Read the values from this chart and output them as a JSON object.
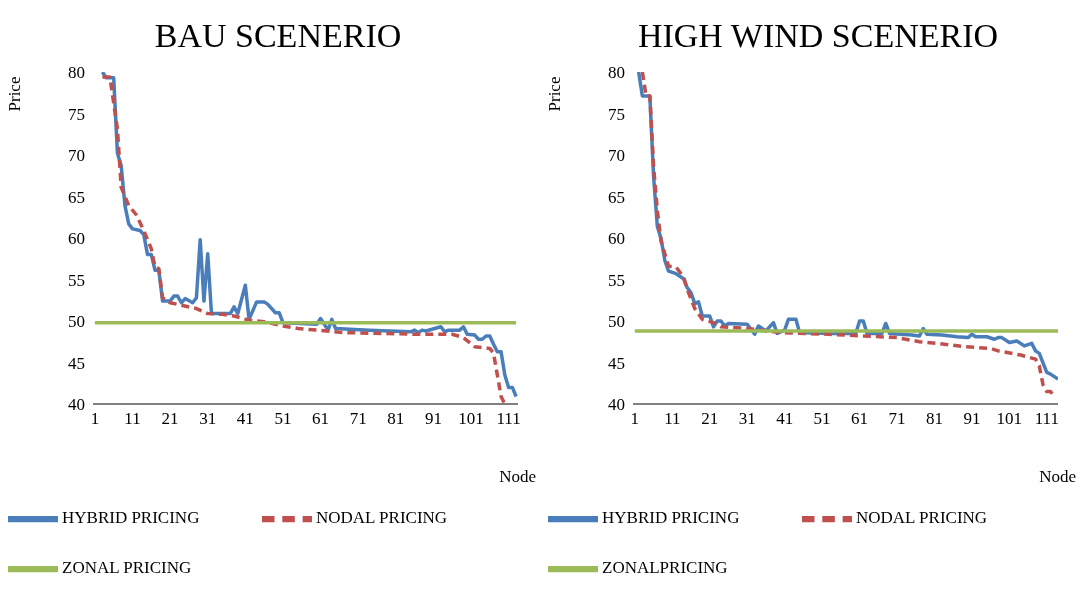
{
  "chart_data": [
    {
      "type": "line",
      "title": "BAU SCENERIO",
      "xlabel": "Node",
      "ylabel": "Price",
      "xlim": [
        0.5,
        113.5
      ],
      "xticks": [
        1,
        11,
        21,
        31,
        41,
        51,
        61,
        71,
        81,
        91,
        101,
        111
      ],
      "ylim": [
        40,
        80
      ],
      "yticks": [
        40,
        45,
        50,
        55,
        60,
        65,
        70,
        75,
        80
      ],
      "legend": "bottom",
      "marker": "none",
      "series": [
        {
          "name": "HYBRID PRICING",
          "color": "#4a7ebb",
          "line_style": "solid",
          "x": [
            3,
            4,
            6,
            7,
            8,
            9,
            10,
            11,
            13,
            14,
            15,
            16,
            17,
            18,
            19,
            21,
            22,
            23,
            24,
            25,
            27,
            28,
            29,
            30,
            31,
            32,
            37,
            38,
            39,
            41,
            42,
            44,
            46,
            47,
            49,
            50,
            51,
            60,
            61,
            63,
            64,
            65,
            74,
            85,
            86,
            87,
            88,
            89,
            93,
            94,
            95,
            98,
            99,
            100,
            102,
            103,
            104,
            105,
            106,
            107,
            108,
            109,
            110,
            111,
            112,
            113
          ],
          "values": [
            80,
            79.3,
            79.3,
            70.2,
            68.7,
            63.9,
            61.7,
            61.1,
            60.9,
            60.4,
            58,
            58,
            56.1,
            56.1,
            52.4,
            52.4,
            53,
            53,
            52.2,
            52.7,
            52.2,
            52.8,
            59.8,
            52.4,
            58.1,
            50.9,
            50.9,
            51.7,
            50.9,
            54.3,
            50.2,
            52.3,
            52.3,
            52,
            51,
            51,
            49.8,
            49.6,
            50.3,
            48.9,
            50.2,
            49.1,
            48.9,
            48.7,
            48.9,
            48.6,
            48.9,
            48.8,
            49.3,
            48.7,
            48.9,
            48.9,
            49.3,
            48.4,
            48.3,
            47.8,
            47.8,
            48.2,
            48.2,
            47.2,
            46.3,
            46.3,
            43.5,
            42,
            42,
            40.9
          ]
        },
        {
          "name": "NODAL PRICING",
          "color": "#c0504d",
          "line_style": "dashed",
          "x": [
            3,
            5,
            7,
            8,
            10,
            12,
            14,
            16,
            17,
            18,
            19,
            21,
            24,
            28,
            31,
            35,
            38,
            42,
            46,
            51,
            55,
            60,
            67,
            78,
            87,
            96,
            99,
            102,
            106,
            107,
            108,
            109,
            110
          ],
          "values": [
            79.4,
            79.4,
            73.1,
            66.1,
            63.9,
            62.8,
            60.9,
            58.7,
            56.5,
            56.3,
            52.8,
            52.2,
            51.9,
            51.5,
            50.9,
            50.8,
            50.6,
            50.1,
            49.9,
            49.4,
            49.1,
            48.9,
            48.6,
            48.5,
            48.4,
            48.4,
            48,
            46.9,
            46.7,
            46.1,
            43.5,
            40.9,
            40
          ]
        },
        {
          "name": "ZONAL PRICING",
          "color": "#9bbb59",
          "line_style": "solid",
          "x": [
            1,
            113
          ],
          "values": [
            49.8,
            49.8
          ]
        }
      ]
    },
    {
      "type": "line",
      "title": "HIGH WIND SCENERIO",
      "xlabel": "Node",
      "ylabel": "Price",
      "xlim": [
        0.5,
        114
      ],
      "xticks": [
        1,
        11,
        21,
        31,
        41,
        51,
        61,
        71,
        81,
        91,
        101,
        111
      ],
      "ylim": [
        40,
        80
      ],
      "yticks": [
        40,
        45,
        50,
        55,
        60,
        65,
        70,
        75,
        80
      ],
      "legend": "bottom",
      "marker": "none",
      "series": [
        {
          "name": "HYBRID PRICING",
          "color": "#4a7ebb",
          "line_style": "solid",
          "x": [
            2,
            3,
            5,
            6,
            7,
            8,
            9,
            10,
            12,
            14,
            15,
            16,
            17,
            18,
            19,
            21,
            22,
            23,
            24,
            25,
            26,
            31,
            33,
            34,
            36,
            38,
            39,
            41,
            42,
            44,
            45,
            53,
            60,
            61,
            62,
            63,
            67,
            68,
            69,
            75,
            77,
            78,
            79,
            83,
            87,
            90,
            91,
            92,
            95,
            97,
            98,
            99,
            101,
            103,
            105,
            107,
            108,
            109,
            111,
            112,
            114
          ],
          "values": [
            80,
            77.1,
            77.1,
            67.4,
            61.4,
            59.9,
            57.3,
            56,
            55.7,
            55.1,
            54,
            53.4,
            52.1,
            52.3,
            50.6,
            50.6,
            49.3,
            50,
            50,
            49.4,
            49.7,
            49.6,
            48.4,
            49.4,
            48.8,
            49.8,
            48.5,
            48.9,
            50.2,
            50.2,
            48.6,
            48.5,
            48.5,
            50,
            50,
            48.5,
            48.5,
            49.7,
            48.5,
            48.3,
            48.2,
            49.1,
            48.4,
            48.3,
            48.1,
            48,
            48.4,
            48.1,
            48.1,
            47.8,
            48,
            48,
            47.4,
            47.6,
            47,
            47.3,
            46.4,
            46.1,
            43.8,
            43.6,
            43
          ]
        },
        {
          "name": "NODAL PRICING",
          "color": "#c0504d",
          "line_style": "dashed",
          "x": [
            3,
            4,
            5,
            6,
            7,
            8,
            10,
            12,
            14,
            15,
            17,
            19,
            22,
            24,
            31,
            40,
            53,
            62,
            71,
            77,
            82,
            89,
            96,
            98,
            104,
            108,
            109,
            110,
            111,
            112,
            113
          ],
          "values": [
            80,
            77.1,
            77.1,
            68.6,
            63.3,
            59.6,
            56.6,
            56.5,
            55.3,
            53.8,
            51.5,
            50.2,
            49.8,
            49.3,
            49.1,
            48.6,
            48.4,
            48.2,
            48,
            47.5,
            47.3,
            46.9,
            46.7,
            46.4,
            45.9,
            45.4,
            44.6,
            42.3,
            41.5,
            41.5,
            40.9
          ]
        },
        {
          "name": "ZONALPRICING",
          "color": "#9bbb59",
          "line_style": "solid",
          "x": [
            1,
            114
          ],
          "values": [
            48.8,
            48.8
          ]
        }
      ]
    }
  ]
}
